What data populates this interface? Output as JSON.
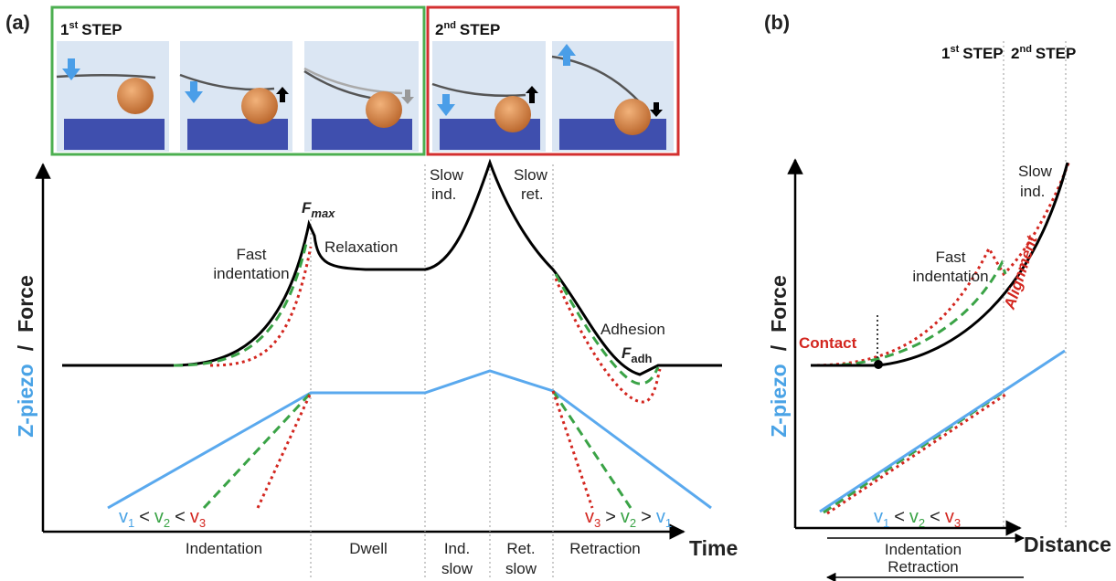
{
  "panel_a": {
    "label": "(a)",
    "step_1": {
      "number": "1",
      "suffix": "st",
      "word": "STEP"
    },
    "step_2": {
      "number": "2",
      "suffix": "nd",
      "word": "STEP"
    },
    "y_axis_label": {
      "z_piezo": "Z-piezo",
      "separator": "/",
      "force": "Force"
    },
    "x_axis_label": "Time",
    "annotations": {
      "f_max": {
        "symbol": "F",
        "subscript": "max"
      },
      "relaxation": "Relaxation",
      "fast_indentation": [
        "Fast",
        "indentation"
      ],
      "slow_ind": [
        "Slow",
        "ind."
      ],
      "slow_ret": [
        "Slow",
        "ret."
      ],
      "adhesion": "Adhesion",
      "f_adh": {
        "symbol": "F",
        "subscript": "adh"
      }
    },
    "velocity_approach": [
      "v",
      "1",
      "<",
      "v",
      "2",
      "<",
      "v",
      "3"
    ],
    "velocity_retract": [
      "v",
      "3",
      ">",
      "v",
      "2",
      ">",
      "v",
      "1"
    ],
    "phases": [
      [
        "Indentation"
      ],
      [
        "Dwell"
      ],
      [
        "Ind.",
        "slow"
      ],
      [
        "Ret.",
        "slow"
      ],
      [
        "Retraction"
      ]
    ]
  },
  "panel_b": {
    "label": "(b)",
    "step_1": {
      "number": "1",
      "suffix": "st",
      "word": "STEP"
    },
    "step_2": {
      "number": "2",
      "suffix": "nd",
      "word": "STEP"
    },
    "y_axis_label": {
      "z_piezo": "Z-piezo",
      "separator": "/",
      "force": "Force"
    },
    "x_axis_label": "Distance",
    "annotations": {
      "slow_ind": [
        "Slow",
        "ind."
      ],
      "fast_indentation": [
        "Fast",
        "indentation"
      ],
      "alignment": "Alignment",
      "contact": "Contact"
    },
    "velocity": [
      "v",
      "1",
      "<",
      "v",
      "2",
      "<",
      "v",
      "3"
    ],
    "directions": [
      "Indentation",
      "Retraction"
    ]
  }
}
